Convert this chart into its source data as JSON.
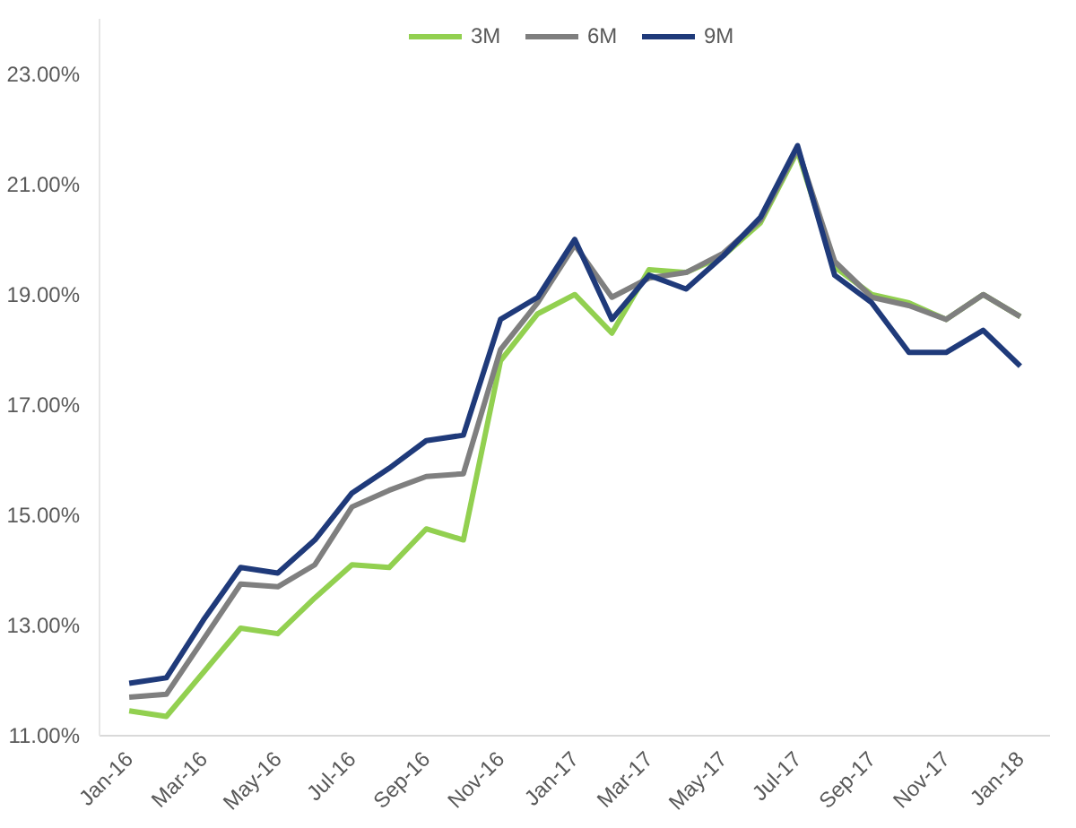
{
  "chart_data": {
    "type": "line",
    "categories": [
      "Jan-16",
      null,
      "Mar-16",
      null,
      "May-16",
      null,
      "Jul-16",
      null,
      "Sep-16",
      null,
      "Nov-16",
      null,
      "Jan-17",
      null,
      "Mar-17",
      null,
      "May-17",
      null,
      "Jul-17",
      null,
      "Sep-17",
      null,
      "Nov-17",
      null,
      "Jan-18"
    ],
    "series": [
      {
        "name": "3M",
        "color": "#92d050",
        "values": [
          11.45,
          11.35,
          12.15,
          12.95,
          12.85,
          13.5,
          14.1,
          14.05,
          14.75,
          14.55,
          17.8,
          18.65,
          19.0,
          18.3,
          19.45,
          19.4,
          19.7,
          20.3,
          21.6,
          19.5,
          19.0,
          18.85,
          18.55,
          19.0,
          18.6
        ]
      },
      {
        "name": "6M",
        "color": "#7f7f7f",
        "values": [
          11.7,
          11.75,
          12.75,
          13.75,
          13.7,
          14.1,
          15.15,
          15.45,
          15.7,
          15.75,
          18.0,
          18.85,
          19.9,
          18.95,
          19.3,
          19.4,
          19.75,
          20.35,
          21.65,
          19.6,
          18.95,
          18.8,
          18.55,
          19.0,
          18.6
        ]
      },
      {
        "name": "9M",
        "color": "#1f3a7a",
        "values": [
          11.95,
          12.05,
          13.1,
          14.05,
          13.95,
          14.55,
          15.4,
          15.85,
          16.35,
          16.45,
          18.55,
          18.95,
          20.0,
          18.55,
          19.35,
          19.1,
          19.7,
          20.4,
          21.7,
          19.35,
          18.85,
          17.95,
          17.95,
          18.35,
          17.7
        ]
      }
    ],
    "ylim": [
      11,
      24
    ],
    "yticks": [
      {
        "value": 11,
        "label": "11.00%"
      },
      {
        "value": 13,
        "label": "13.00%"
      },
      {
        "value": 15,
        "label": "15.00%"
      },
      {
        "value": 17,
        "label": "17.00%"
      },
      {
        "value": 19,
        "label": "19.00%"
      },
      {
        "value": 21,
        "label": "21.00%"
      },
      {
        "value": 23,
        "label": "23.00%"
      }
    ],
    "grid": false,
    "legend": "top",
    "line_style": "solid",
    "marker": "none"
  }
}
